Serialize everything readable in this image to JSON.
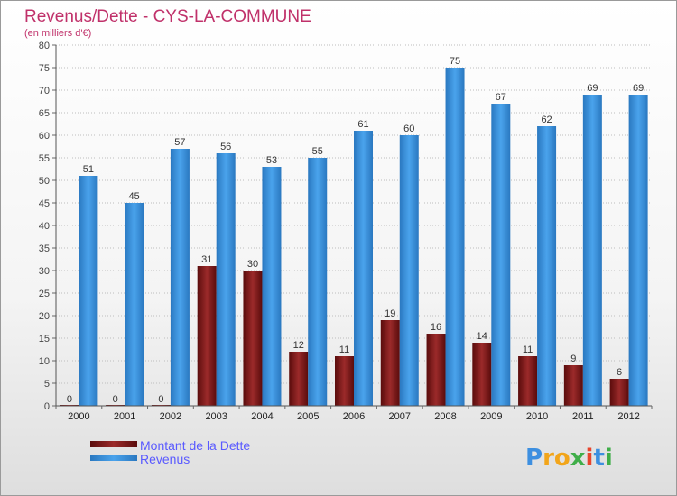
{
  "chart_data": {
    "type": "bar",
    "title": "Revenus/Dette - CYS-LA-COMMUNE",
    "subtitle": "(en milliers d'€)",
    "categories": [
      "2000",
      "2001",
      "2002",
      "2003",
      "2004",
      "2005",
      "2006",
      "2007",
      "2008",
      "2009",
      "2010",
      "2011",
      "2012"
    ],
    "series": [
      {
        "name": "Montant de la Dette",
        "color": "#7a1616",
        "values": [
          0,
          0,
          0,
          31,
          30,
          12,
          11,
          19,
          16,
          14,
          11,
          9,
          6
        ]
      },
      {
        "name": "Revenus",
        "color": "#3c97e0",
        "values": [
          51,
          45,
          57,
          56,
          53,
          55,
          61,
          60,
          75,
          67,
          62,
          69,
          69
        ]
      }
    ],
    "ylim": [
      0,
      80
    ],
    "yticks": [
      0,
      5,
      10,
      15,
      20,
      25,
      30,
      35,
      40,
      45,
      50,
      55,
      60,
      65,
      70,
      75,
      80
    ],
    "grid": true,
    "legend": "bottom-left"
  },
  "logo": {
    "letters": [
      "P",
      "r",
      "o",
      "x",
      "i",
      "t",
      "i"
    ]
  }
}
